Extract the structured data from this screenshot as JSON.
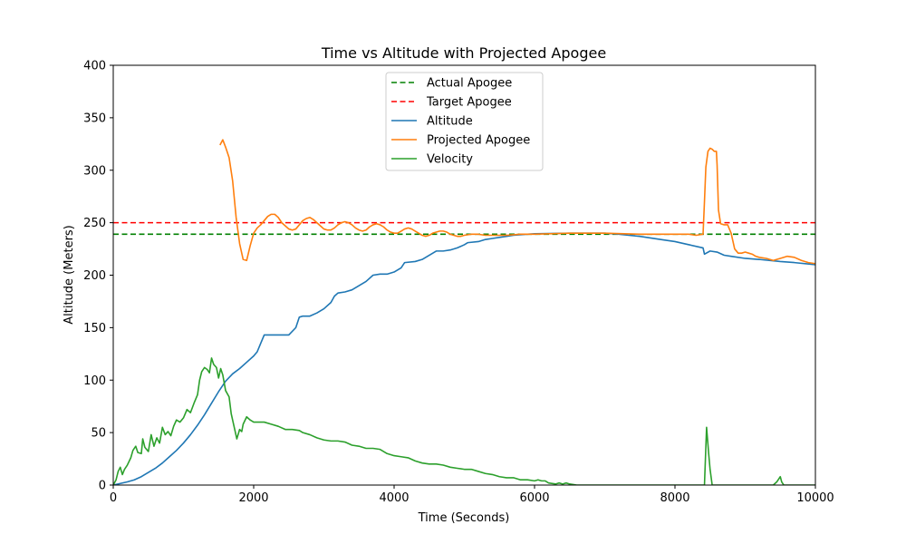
{
  "chart_data": {
    "type": "line",
    "title": "Time vs Altitude with Projected Apogee",
    "xlabel": "Time (Seconds)",
    "ylabel": "Altitude (Meters)",
    "xlim": [
      0,
      10000
    ],
    "ylim": [
      0,
      400
    ],
    "xticks": [
      0,
      2000,
      4000,
      6000,
      8000,
      10000
    ],
    "yticks": [
      0,
      50,
      100,
      150,
      200,
      250,
      300,
      350,
      400
    ],
    "grid": false,
    "legend_position": "top-center",
    "hlines": [
      {
        "name": "Actual Apogee",
        "y": 239,
        "color": "#008000",
        "style": "dashed"
      },
      {
        "name": "Target Apogee",
        "y": 250,
        "color": "#ff0000",
        "style": "dashed"
      }
    ],
    "series": [
      {
        "name": "Altitude",
        "color": "#1f77b4",
        "points": [
          [
            0,
            0
          ],
          [
            200,
            3
          ],
          [
            300,
            5
          ],
          [
            400,
            8
          ],
          [
            500,
            12
          ],
          [
            600,
            16
          ],
          [
            700,
            21
          ],
          [
            800,
            27
          ],
          [
            900,
            33
          ],
          [
            1000,
            40
          ],
          [
            1100,
            48
          ],
          [
            1200,
            57
          ],
          [
            1300,
            67
          ],
          [
            1400,
            78
          ],
          [
            1500,
            89
          ],
          [
            1600,
            99
          ],
          [
            1700,
            106
          ],
          [
            1800,
            111
          ],
          [
            1900,
            117
          ],
          [
            2000,
            123
          ],
          [
            2050,
            127
          ],
          [
            2100,
            135
          ],
          [
            2150,
            143
          ],
          [
            2300,
            143
          ],
          [
            2500,
            143
          ],
          [
            2600,
            150
          ],
          [
            2650,
            160
          ],
          [
            2700,
            161
          ],
          [
            2800,
            161
          ],
          [
            2900,
            164
          ],
          [
            3000,
            168
          ],
          [
            3100,
            174
          ],
          [
            3150,
            180
          ],
          [
            3200,
            183
          ],
          [
            3300,
            184
          ],
          [
            3400,
            186
          ],
          [
            3500,
            190
          ],
          [
            3600,
            194
          ],
          [
            3700,
            200
          ],
          [
            3800,
            201
          ],
          [
            3900,
            201
          ],
          [
            4000,
            203
          ],
          [
            4100,
            207
          ],
          [
            4150,
            212
          ],
          [
            4300,
            213
          ],
          [
            4400,
            215
          ],
          [
            4500,
            219
          ],
          [
            4600,
            223
          ],
          [
            4700,
            223
          ],
          [
            4800,
            224
          ],
          [
            4900,
            226
          ],
          [
            5000,
            229
          ],
          [
            5050,
            231
          ],
          [
            5200,
            232
          ],
          [
            5300,
            234
          ],
          [
            5400,
            235
          ],
          [
            5500,
            236
          ],
          [
            5600,
            237
          ],
          [
            5700,
            238
          ],
          [
            5900,
            239
          ],
          [
            6000,
            239.5
          ],
          [
            6500,
            240
          ],
          [
            7000,
            240
          ],
          [
            7200,
            239
          ],
          [
            7500,
            237
          ],
          [
            7800,
            234
          ],
          [
            8000,
            232
          ],
          [
            8200,
            229
          ],
          [
            8400,
            226
          ],
          [
            8420,
            220
          ],
          [
            8500,
            223
          ],
          [
            8600,
            222
          ],
          [
            8700,
            219
          ],
          [
            8800,
            218
          ],
          [
            9000,
            216
          ],
          [
            9200,
            215
          ],
          [
            9500,
            213
          ],
          [
            9700,
            212
          ],
          [
            10000,
            210
          ]
        ]
      },
      {
        "name": "Projected Apogee",
        "color": "#ff7f0e",
        "points": [
          [
            1520,
            324
          ],
          [
            1560,
            329
          ],
          [
            1600,
            322
          ],
          [
            1650,
            312
          ],
          [
            1700,
            290
          ],
          [
            1750,
            255
          ],
          [
            1800,
            230
          ],
          [
            1850,
            215
          ],
          [
            1900,
            214
          ],
          [
            1950,
            228
          ],
          [
            2000,
            240
          ],
          [
            2050,
            245
          ],
          [
            2100,
            248
          ],
          [
            2150,
            252
          ],
          [
            2200,
            256
          ],
          [
            2250,
            258
          ],
          [
            2300,
            258
          ],
          [
            2350,
            255
          ],
          [
            2400,
            250
          ],
          [
            2450,
            247
          ],
          [
            2500,
            244
          ],
          [
            2550,
            243
          ],
          [
            2600,
            244
          ],
          [
            2650,
            248
          ],
          [
            2700,
            252
          ],
          [
            2750,
            254
          ],
          [
            2800,
            255
          ],
          [
            2850,
            253
          ],
          [
            2900,
            250
          ],
          [
            2950,
            247
          ],
          [
            3000,
            244
          ],
          [
            3050,
            243
          ],
          [
            3100,
            243
          ],
          [
            3150,
            245
          ],
          [
            3200,
            248
          ],
          [
            3250,
            250
          ],
          [
            3300,
            251
          ],
          [
            3350,
            250
          ],
          [
            3400,
            248
          ],
          [
            3450,
            245
          ],
          [
            3500,
            243
          ],
          [
            3550,
            242
          ],
          [
            3600,
            243
          ],
          [
            3650,
            246
          ],
          [
            3700,
            248
          ],
          [
            3750,
            249
          ],
          [
            3800,
            248
          ],
          [
            3850,
            246
          ],
          [
            3900,
            243
          ],
          [
            3950,
            241
          ],
          [
            4000,
            240
          ],
          [
            4050,
            240
          ],
          [
            4100,
            242
          ],
          [
            4150,
            244
          ],
          [
            4200,
            245
          ],
          [
            4250,
            244
          ],
          [
            4300,
            242
          ],
          [
            4350,
            240
          ],
          [
            4400,
            238
          ],
          [
            4450,
            237
          ],
          [
            4500,
            238
          ],
          [
            4550,
            240
          ],
          [
            4600,
            241
          ],
          [
            4650,
            242
          ],
          [
            4700,
            242
          ],
          [
            4750,
            241
          ],
          [
            4800,
            239
          ],
          [
            4850,
            238
          ],
          [
            4900,
            237
          ],
          [
            4950,
            237
          ],
          [
            5000,
            238
          ],
          [
            5100,
            239
          ],
          [
            5200,
            239
          ],
          [
            5300,
            238
          ],
          [
            5400,
            238
          ],
          [
            5500,
            238
          ],
          [
            5600,
            238
          ],
          [
            5800,
            239
          ],
          [
            6000,
            239
          ],
          [
            6500,
            240
          ],
          [
            7000,
            240
          ],
          [
            7500,
            239
          ],
          [
            8000,
            239
          ],
          [
            8200,
            239
          ],
          [
            8300,
            238
          ],
          [
            8400,
            239
          ],
          [
            8420,
            270
          ],
          [
            8440,
            303
          ],
          [
            8470,
            318
          ],
          [
            8500,
            321
          ],
          [
            8530,
            320
          ],
          [
            8560,
            318
          ],
          [
            8590,
            318
          ],
          [
            8600,
            305
          ],
          [
            8620,
            262
          ],
          [
            8650,
            249
          ],
          [
            8700,
            248
          ],
          [
            8750,
            248
          ],
          [
            8800,
            240
          ],
          [
            8850,
            225
          ],
          [
            8900,
            221
          ],
          [
            8950,
            221
          ],
          [
            9000,
            222
          ],
          [
            9050,
            221
          ],
          [
            9100,
            220
          ],
          [
            9150,
            218
          ],
          [
            9200,
            217
          ],
          [
            9300,
            216
          ],
          [
            9400,
            214
          ],
          [
            9500,
            216
          ],
          [
            9600,
            218
          ],
          [
            9700,
            217
          ],
          [
            9800,
            214
          ],
          [
            9900,
            212
          ],
          [
            10000,
            211
          ]
        ]
      },
      {
        "name": "Velocity",
        "color": "#2ca02c",
        "points": [
          [
            0,
            0
          ],
          [
            40,
            5
          ],
          [
            70,
            13
          ],
          [
            100,
            17
          ],
          [
            130,
            10
          ],
          [
            160,
            15
          ],
          [
            200,
            19
          ],
          [
            250,
            26
          ],
          [
            280,
            33
          ],
          [
            320,
            37
          ],
          [
            350,
            31
          ],
          [
            400,
            30
          ],
          [
            420,
            44
          ],
          [
            450,
            36
          ],
          [
            500,
            32
          ],
          [
            540,
            48
          ],
          [
            580,
            37
          ],
          [
            620,
            45
          ],
          [
            660,
            40
          ],
          [
            700,
            55
          ],
          [
            740,
            48
          ],
          [
            780,
            51
          ],
          [
            820,
            47
          ],
          [
            860,
            56
          ],
          [
            900,
            62
          ],
          [
            950,
            60
          ],
          [
            1000,
            64
          ],
          [
            1050,
            72
          ],
          [
            1100,
            69
          ],
          [
            1150,
            78
          ],
          [
            1200,
            86
          ],
          [
            1230,
            100
          ],
          [
            1260,
            108
          ],
          [
            1300,
            112
          ],
          [
            1340,
            110
          ],
          [
            1370,
            107
          ],
          [
            1400,
            121
          ],
          [
            1430,
            115
          ],
          [
            1470,
            112
          ],
          [
            1500,
            102
          ],
          [
            1530,
            111
          ],
          [
            1560,
            105
          ],
          [
            1600,
            90
          ],
          [
            1650,
            84
          ],
          [
            1680,
            68
          ],
          [
            1720,
            56
          ],
          [
            1760,
            44
          ],
          [
            1800,
            53
          ],
          [
            1830,
            51
          ],
          [
            1850,
            58
          ],
          [
            1900,
            65
          ],
          [
            1950,
            62
          ],
          [
            2000,
            60
          ],
          [
            2150,
            60
          ],
          [
            2250,
            58
          ],
          [
            2350,
            56
          ],
          [
            2450,
            53
          ],
          [
            2550,
            53
          ],
          [
            2650,
            52
          ],
          [
            2700,
            50
          ],
          [
            2800,
            48
          ],
          [
            2900,
            45
          ],
          [
            3000,
            43
          ],
          [
            3100,
            42
          ],
          [
            3200,
            42
          ],
          [
            3300,
            41
          ],
          [
            3400,
            38
          ],
          [
            3500,
            37
          ],
          [
            3600,
            35
          ],
          [
            3700,
            35
          ],
          [
            3800,
            34
          ],
          [
            3900,
            30
          ],
          [
            4000,
            28
          ],
          [
            4100,
            27
          ],
          [
            4200,
            26
          ],
          [
            4300,
            23
          ],
          [
            4400,
            21
          ],
          [
            4500,
            20
          ],
          [
            4600,
            20
          ],
          [
            4700,
            19
          ],
          [
            4800,
            17
          ],
          [
            4900,
            16
          ],
          [
            5000,
            15
          ],
          [
            5100,
            15
          ],
          [
            5200,
            13
          ],
          [
            5300,
            11
          ],
          [
            5400,
            10
          ],
          [
            5500,
            8
          ],
          [
            5600,
            7
          ],
          [
            5700,
            7
          ],
          [
            5800,
            5
          ],
          [
            5900,
            5
          ],
          [
            6000,
            4
          ],
          [
            6050,
            5
          ],
          [
            6100,
            4
          ],
          [
            6150,
            4
          ],
          [
            6200,
            2
          ],
          [
            6300,
            1
          ],
          [
            6350,
            2
          ],
          [
            6400,
            1
          ],
          [
            6450,
            2
          ],
          [
            6500,
            1
          ],
          [
            6600,
            0
          ],
          [
            7000,
            0
          ],
          [
            8000,
            0
          ],
          [
            8420,
            0
          ],
          [
            8450,
            55
          ],
          [
            8480,
            30
          ],
          [
            8500,
            15
          ],
          [
            8530,
            0
          ],
          [
            9000,
            0
          ],
          [
            9400,
            0
          ],
          [
            9450,
            3
          ],
          [
            9500,
            8
          ],
          [
            9520,
            3
          ],
          [
            9550,
            0
          ],
          [
            10000,
            0
          ]
        ]
      }
    ],
    "legend_entries": [
      "Actual Apogee",
      "Target Apogee",
      "Altitude",
      "Projected Apogee",
      "Velocity"
    ]
  }
}
